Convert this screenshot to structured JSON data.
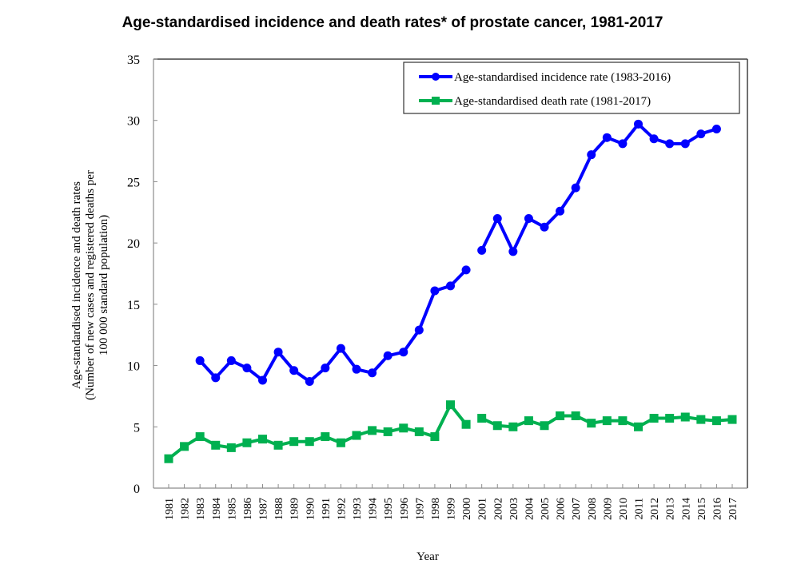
{
  "chart_data": {
    "type": "line",
    "title": "Age-standardised incidence and death rates* of prostate cancer, 1981-2017",
    "xlabel": "Year",
    "ylabel_lines": [
      "Age-standardised incidence and death rates",
      "(Number of new cases and registered deaths per",
      "100 000 standard population)"
    ],
    "ylim": [
      0,
      35
    ],
    "yticks": [
      0,
      5,
      10,
      15,
      20,
      25,
      30,
      35
    ],
    "grid": false,
    "legend_position": "top-right",
    "x": [
      1981,
      1982,
      1983,
      1984,
      1985,
      1986,
      1987,
      1988,
      1989,
      1990,
      1991,
      1992,
      1993,
      1994,
      1995,
      1996,
      1997,
      1998,
      1999,
      2000,
      2001,
      2002,
      2003,
      2004,
      2005,
      2006,
      2007,
      2008,
      2009,
      2010,
      2011,
      2012,
      2013,
      2014,
      2015,
      2016,
      2017
    ],
    "series": [
      {
        "name": "Age-standardised incidence rate (1983-2016)",
        "color": "#0000ff",
        "marker": "circle",
        "break_after": 2000,
        "values": [
          null,
          null,
          10.4,
          9.0,
          10.4,
          9.8,
          8.8,
          11.1,
          9.6,
          8.7,
          9.8,
          11.4,
          9.7,
          9.4,
          10.8,
          11.1,
          12.9,
          16.1,
          16.5,
          17.8,
          19.4,
          22.0,
          19.3,
          22.0,
          21.3,
          22.6,
          24.5,
          27.2,
          28.6,
          28.1,
          29.7,
          28.5,
          28.1,
          28.1,
          28.9,
          29.3,
          null
        ]
      },
      {
        "name": "Age-standardised death rate (1981-2017)",
        "color": "#00b050",
        "marker": "square",
        "break_after": 2000,
        "values": [
          2.4,
          3.4,
          4.2,
          3.5,
          3.3,
          3.7,
          4.0,
          3.5,
          3.8,
          3.8,
          4.2,
          3.7,
          4.3,
          4.7,
          4.6,
          4.9,
          4.6,
          4.2,
          6.8,
          5.2,
          5.7,
          5.1,
          5.0,
          5.5,
          5.1,
          5.9,
          5.9,
          5.3,
          5.5,
          5.5,
          5.0,
          5.7,
          5.7,
          5.8,
          5.6,
          5.5,
          5.6
        ]
      }
    ]
  }
}
